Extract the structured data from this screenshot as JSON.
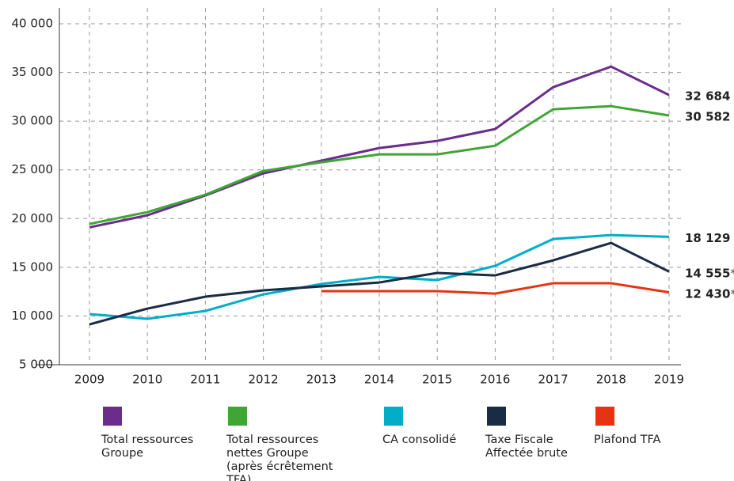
{
  "chart_data": {
    "type": "line",
    "categories": [
      "2009",
      "2010",
      "2011",
      "2012",
      "2013",
      "2014",
      "2015",
      "2016",
      "2017",
      "2018",
      "2019"
    ],
    "ylim": [
      5000,
      40000
    ],
    "yticks": [
      {
        "value": 5000,
        "label": "5 000"
      },
      {
        "value": 10000,
        "label": "10 000"
      },
      {
        "value": 15000,
        "label": "15 000"
      },
      {
        "value": 20000,
        "label": "20 000"
      },
      {
        "value": 25000,
        "label": "25 000"
      },
      {
        "value": 30000,
        "label": "30 000"
      },
      {
        "value": 35000,
        "label": "35 000"
      },
      {
        "value": 40000,
        "label": "40 000"
      }
    ],
    "grid": true,
    "legend": "bottom",
    "series": [
      {
        "name": "Total ressources Groupe",
        "color": "#6b2d8c",
        "values": [
          19100,
          20340,
          22370,
          24640,
          25940,
          27240,
          27970,
          29190,
          33490,
          35600,
          32684
        ],
        "value_labels": [
          null,
          null,
          null,
          null,
          null,
          null,
          null,
          null,
          null,
          null,
          "32 684"
        ]
      },
      {
        "name": "Total ressources nettes Groupe (après écrêtement TFA)",
        "color": "#3fa535",
        "values": [
          19450,
          20670,
          22450,
          24890,
          25780,
          26590,
          26590,
          27480,
          31220,
          31540,
          30582
        ],
        "value_labels": [
          null,
          null,
          null,
          null,
          null,
          null,
          null,
          null,
          null,
          null,
          "30 582"
        ]
      },
      {
        "name": "CA consolidé",
        "color": "#00aec7",
        "values": [
          10200,
          9710,
          10520,
          12220,
          13280,
          14010,
          13690,
          15150,
          17900,
          18310,
          18129
        ],
        "value_labels": [
          null,
          null,
          null,
          null,
          null,
          null,
          null,
          null,
          null,
          null,
          "18 129"
        ]
      },
      {
        "name": "Taxe Fiscale Affectée brute",
        "color": "#1a2b44",
        "values": [
          9140,
          10760,
          11980,
          12630,
          13040,
          13440,
          14420,
          14170,
          15710,
          17500,
          14555
        ],
        "value_labels": [
          null,
          null,
          null,
          null,
          null,
          null,
          null,
          null,
          null,
          null,
          "14 555*"
        ]
      },
      {
        "name": "Plafond TFA",
        "color": "#e63312",
        "values": [
          null,
          null,
          null,
          null,
          12550,
          12550,
          12550,
          12300,
          13360,
          13360,
          12430
        ],
        "value_labels": [
          null,
          null,
          null,
          null,
          null,
          null,
          null,
          null,
          null,
          null,
          "12 430*"
        ]
      }
    ]
  }
}
